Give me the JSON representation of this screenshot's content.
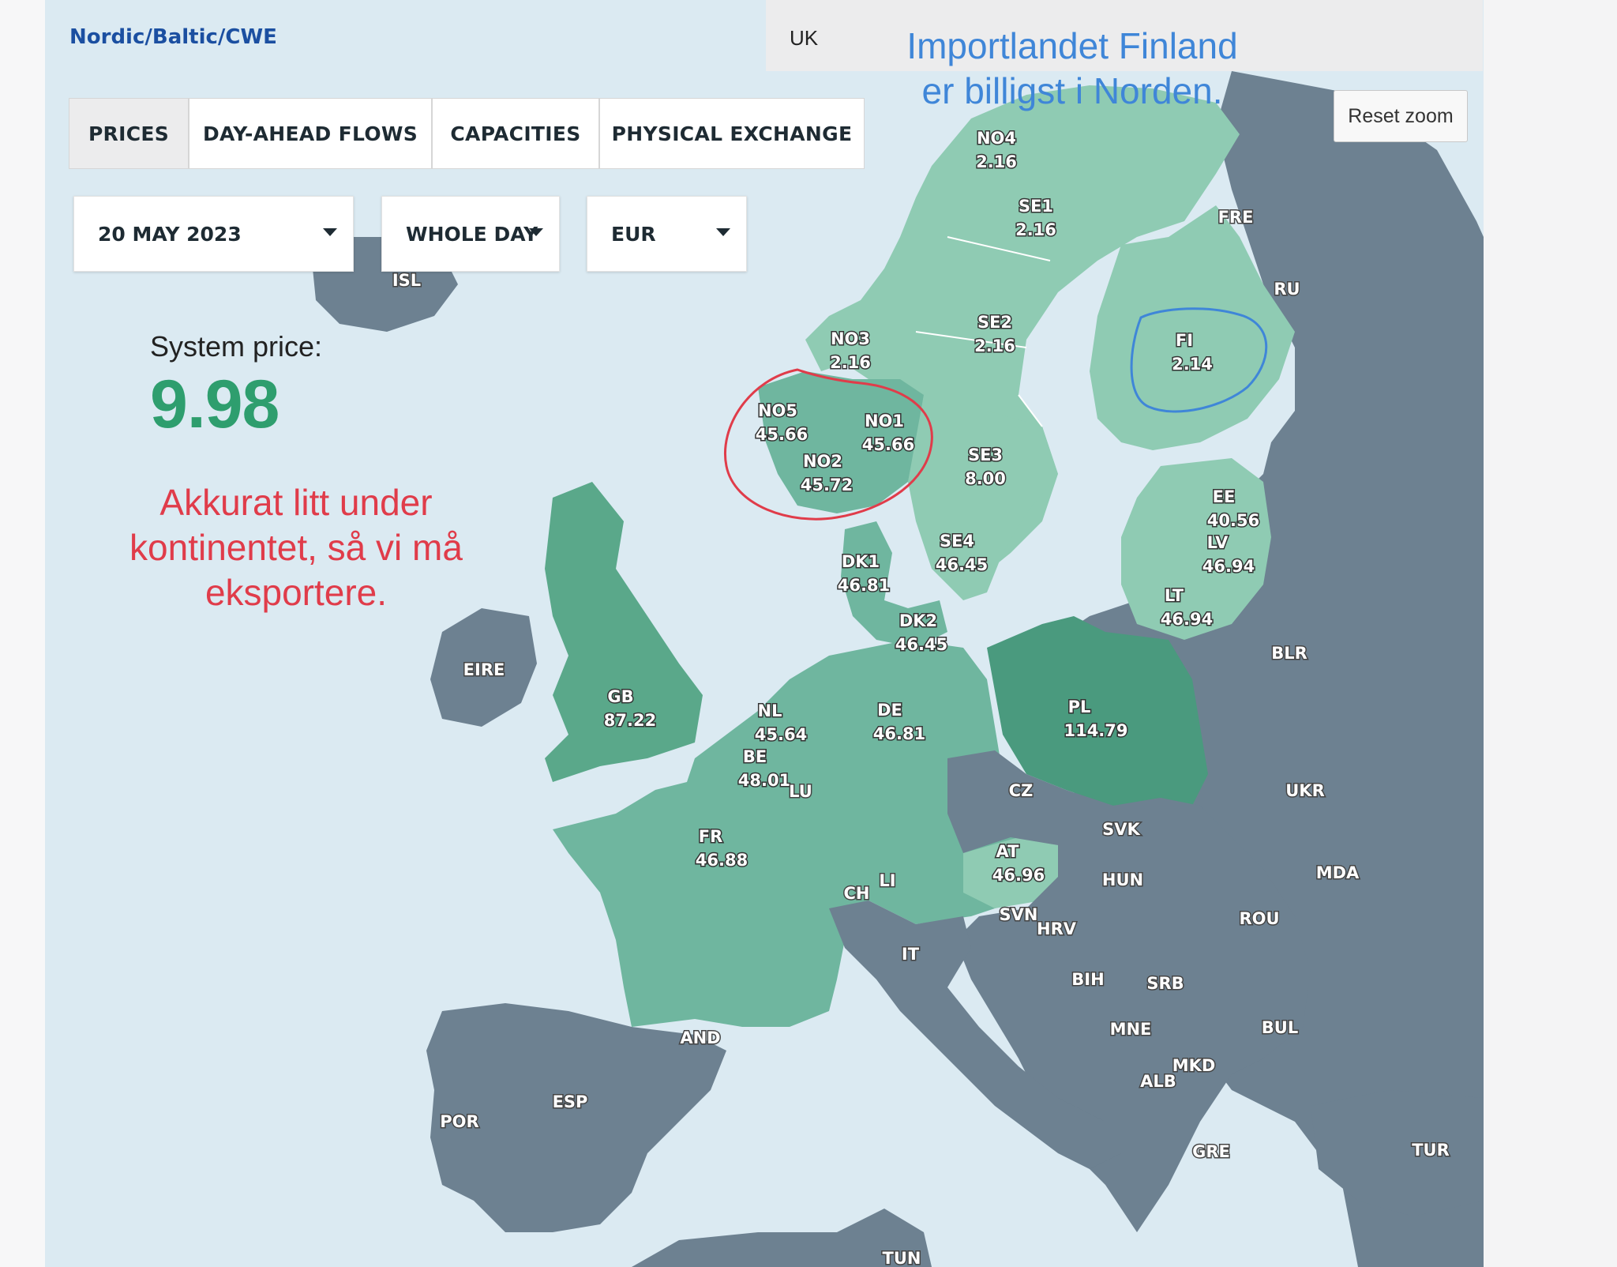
{
  "header": {
    "region_tab": "Nordic/Baltic/CWE",
    "uk_tab": "UK"
  },
  "tabs": [
    {
      "label": "PRICES",
      "active": true
    },
    {
      "label": "DAY-AHEAD FLOWS",
      "active": false
    },
    {
      "label": "CAPACITIES",
      "active": false
    },
    {
      "label": "PHYSICAL EXCHANGE",
      "active": false
    }
  ],
  "filters": {
    "date": "20 MAY 2023",
    "period": "WHOLE DAY",
    "currency": "EUR"
  },
  "system_price": {
    "label": "System price:",
    "value": "9.98"
  },
  "reset_zoom": "Reset zoom",
  "annotations": {
    "red_note": "Akkurat litt under kontinentet, så vi må eksportere.",
    "blue_note_line1": "Importlandet Finland",
    "blue_note_line2": "er billigst i Norden."
  },
  "colors": {
    "price_area_light": "#8fcbb3",
    "price_area_mid": "#6fb69f",
    "price_area_high": "#4a9a7e",
    "non_member": "#6d8191",
    "sea": "#dbeaf2",
    "system_price": "#2e9e6e",
    "annotation_red": "#e03c4a",
    "annotation_blue": "#3f86d8"
  },
  "zones": [
    {
      "code": "NO4",
      "price": "2.16"
    },
    {
      "code": "SE1",
      "price": "2.16"
    },
    {
      "code": "SE2",
      "price": "2.16"
    },
    {
      "code": "NO3",
      "price": "2.16"
    },
    {
      "code": "FI",
      "price": "2.14"
    },
    {
      "code": "NO5",
      "price": "45.66"
    },
    {
      "code": "NO1",
      "price": "45.66"
    },
    {
      "code": "NO2",
      "price": "45.72"
    },
    {
      "code": "SE3",
      "price": "8.00"
    },
    {
      "code": "SE4",
      "price": "46.45"
    },
    {
      "code": "DK1",
      "price": "46.81"
    },
    {
      "code": "DK2",
      "price": "46.45"
    },
    {
      "code": "EE",
      "price": "40.56"
    },
    {
      "code": "LV",
      "price": "46.94"
    },
    {
      "code": "LT",
      "price": "46.94"
    },
    {
      "code": "GB",
      "price": "87.22"
    },
    {
      "code": "NL",
      "price": "45.64"
    },
    {
      "code": "BE",
      "price": "48.01"
    },
    {
      "code": "DE",
      "price": "46.81"
    },
    {
      "code": "PL",
      "price": "114.79"
    },
    {
      "code": "FR",
      "price": "46.88"
    },
    {
      "code": "AT",
      "price": "46.96"
    }
  ],
  "countries": [
    "ISL",
    "FRE",
    "RU",
    "EIRE",
    "BLR",
    "UKR",
    "LU",
    "CZ",
    "SVK",
    "HUN",
    "MDA",
    "ROU",
    "CH",
    "LI",
    "SVN",
    "HRV",
    "IT",
    "BIH",
    "SRB",
    "MNE",
    "BUL",
    "MKD",
    "ALB",
    "GRE",
    "TUR",
    "AND",
    "ESP",
    "POR",
    "TUN"
  ]
}
